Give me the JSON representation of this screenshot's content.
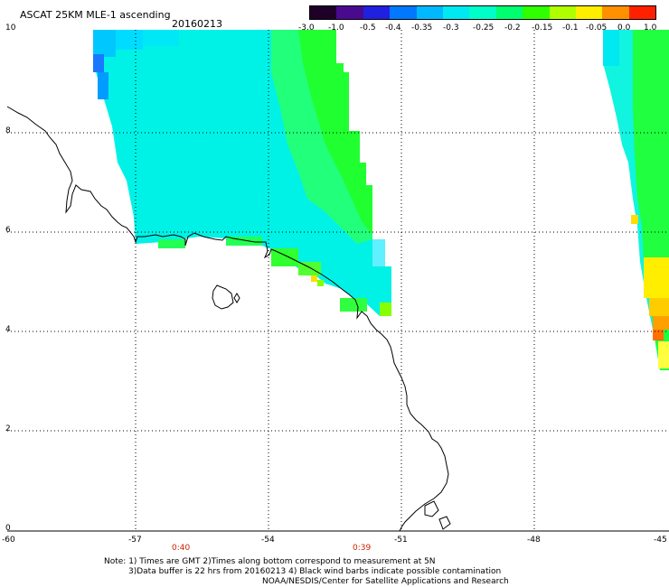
{
  "header": {
    "title": "ASCAT 25KM MLE-1 ascending",
    "date": "20160213"
  },
  "colorbar": {
    "labels": [
      "-3.0",
      "-1.0",
      "-0.5",
      "-0.4",
      "-0.35",
      "-0.3",
      "-0.25",
      "-0.2",
      "-0.15",
      "-0.1",
      "-0.05",
      "0.0",
      "1.0"
    ],
    "colors": [
      "#2a0030",
      "#5a10a0",
      "#2020e0",
      "#0070ff",
      "#00b0ff",
      "#00e0ff",
      "#00ffe0",
      "#00ff80",
      "#20ff00",
      "#a0ff00",
      "#ffff00",
      "#ff9000",
      "#ff2000"
    ]
  },
  "map": {
    "x_ticks": [
      "-60",
      "-57",
      "-54",
      "-51",
      "-48",
      "-45"
    ],
    "y_ticks": [
      "0",
      "2",
      "4",
      "6",
      "8",
      "10"
    ],
    "time_labels": [
      "0:40",
      "0:39"
    ]
  },
  "footer": {
    "line1": "Note: 1) Times are GMT 2)Times along bottom correspond to measurement at 5N",
    "line2": "3)Data buffer is 22 hrs from 20160213 4) Black wind barbs indicate possible contamination",
    "line3": "NOAA/NESDIS/Center for Satellite Applications and Research"
  }
}
